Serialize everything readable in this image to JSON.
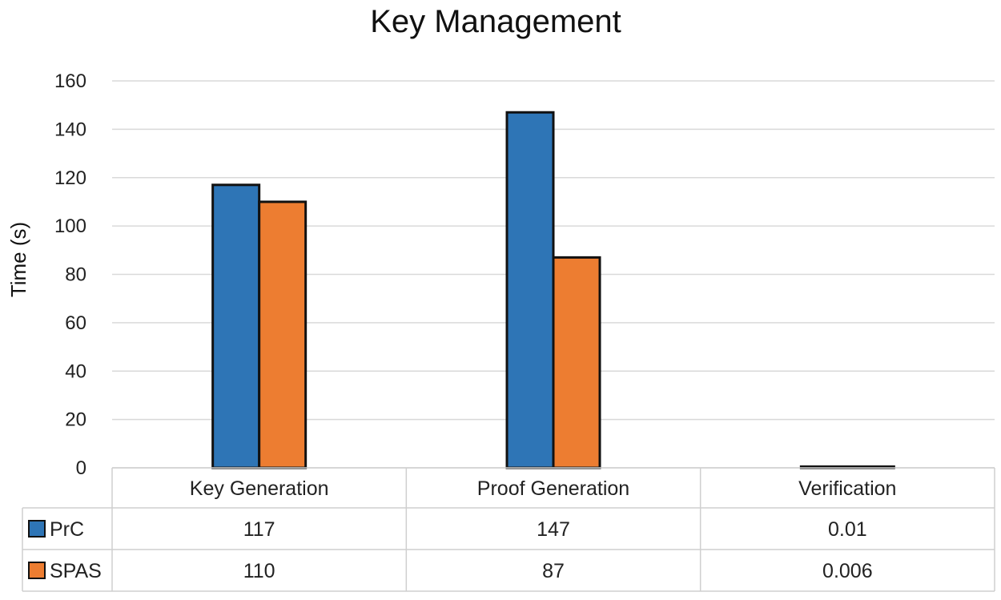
{
  "chart_data": {
    "type": "bar",
    "title": "Key Management",
    "xlabel": "",
    "ylabel": "Time (s)",
    "ylim": [
      0,
      160
    ],
    "yticks": [
      0,
      20,
      40,
      60,
      80,
      100,
      120,
      140,
      160
    ],
    "grid": true,
    "legend": "data-table",
    "categories": [
      "Key Generation",
      "Proof Generation",
      "Verification"
    ],
    "series": [
      {
        "name": "PrC",
        "color": "#2E75B6",
        "values": [
          117,
          147,
          0.01
        ],
        "labels": [
          "117",
          "147",
          "0.01"
        ]
      },
      {
        "name": "SPAS",
        "color": "#ED7D31",
        "values": [
          110,
          87,
          0.006
        ],
        "labels": [
          "110",
          "87",
          "0.006"
        ]
      }
    ]
  }
}
